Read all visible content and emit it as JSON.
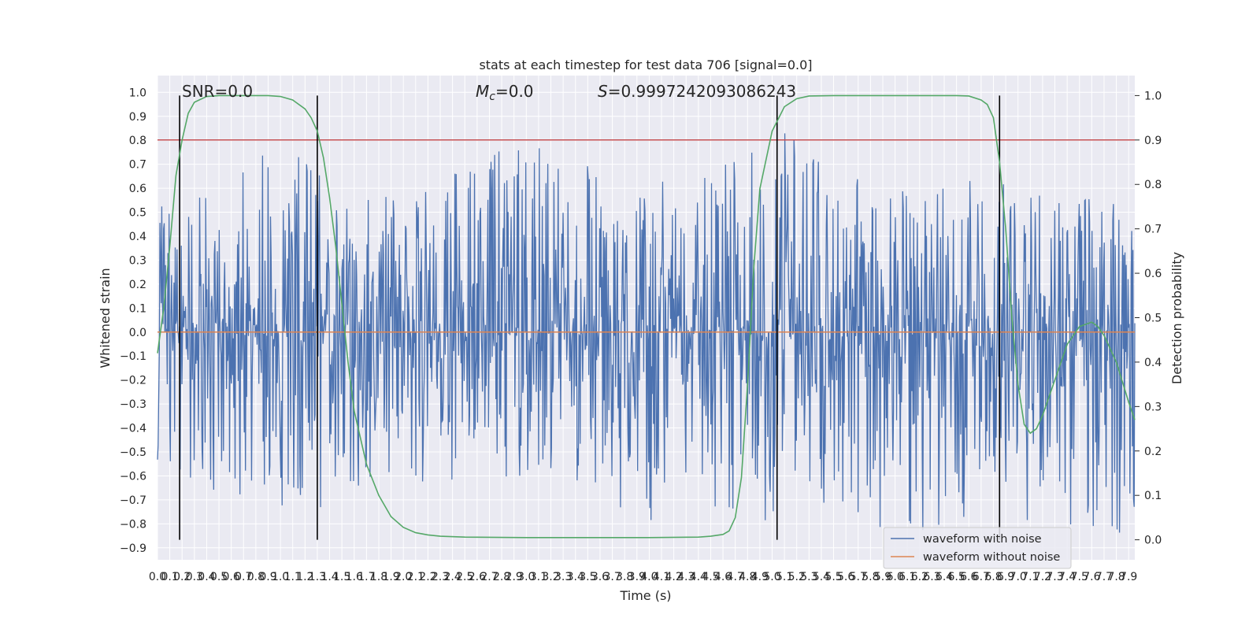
{
  "chart_data": {
    "type": "line",
    "title": "stats at each timestep for test data 706 [signal=0.0]",
    "xlabel": "Time (s)",
    "ylabel": "Whitened strain",
    "y2label": "Detection probability",
    "xlim": [
      0.0,
      7.95
    ],
    "ylim": [
      -0.95,
      1.07
    ],
    "y2lim": [
      -0.045,
      1.045
    ],
    "x_ticks": [
      0.0,
      0.1,
      0.2,
      0.3,
      0.4,
      0.5,
      0.6,
      0.7,
      0.8,
      0.9,
      1.0,
      1.1,
      1.2,
      1.3,
      1.4,
      1.5,
      1.6,
      1.7,
      1.8,
      1.9,
      2.0,
      2.1,
      2.2,
      2.3,
      2.4,
      2.5,
      2.6,
      2.7,
      2.8,
      2.9,
      3.0,
      3.1,
      3.2,
      3.3,
      3.4,
      3.5,
      3.6,
      3.7,
      3.8,
      3.9,
      4.0,
      4.1,
      4.2,
      4.3,
      4.4,
      4.5,
      4.6,
      4.7,
      4.8,
      4.9,
      5.0,
      5.1,
      5.2,
      5.3,
      5.4,
      5.5,
      5.6,
      5.7,
      5.8,
      5.9,
      6.0,
      6.1,
      6.2,
      6.3,
      6.4,
      6.5,
      6.6,
      6.7,
      6.8,
      6.9,
      7.0,
      7.1,
      7.2,
      7.3,
      7.4,
      7.5,
      7.6,
      7.7,
      7.8,
      7.9
    ],
    "x_tick_labels": [
      "0.0",
      "0.1",
      "0.2",
      "0.3",
      "0.4",
      "0.5",
      "0.6",
      "0.7",
      "0.8",
      "0.9",
      "1.0",
      "1.1",
      "1.2",
      "1.3",
      "1.4",
      "1.5",
      "1.6",
      "1.7",
      "1.8",
      "1.9",
      "2.0",
      "2.1",
      "2.2",
      "2.3",
      "2.4",
      "2.5",
      "2.6",
      "2.7",
      "2.8",
      "2.9",
      "3.0",
      "3.1",
      "3.2",
      "3.3",
      "3.4",
      "3.5",
      "3.6",
      "3.7",
      "3.8",
      "3.9",
      "4.0",
      "4.1",
      "4.2",
      "4.3",
      "4.4",
      "4.5",
      "4.6",
      "4.7",
      "4.8",
      "4.9",
      "5.0",
      "5.1",
      "5.2",
      "5.3",
      "5.4",
      "5.5",
      "5.6",
      "5.7",
      "5.8",
      "5.9",
      "6.0",
      "6.1",
      "6.2",
      "6.3",
      "6.4",
      "6.5",
      "6.6",
      "6.7",
      "6.8",
      "6.9",
      "7.0",
      "7.1",
      "7.2",
      "7.3",
      "7.4",
      "7.5",
      "7.6",
      "7.7",
      "7.8",
      "7.9"
    ],
    "y_ticks": [
      1.0,
      0.9,
      0.8,
      0.7,
      0.6,
      0.5,
      0.4,
      0.3,
      0.2,
      0.1,
      0.0,
      -0.1,
      -0.2,
      -0.3,
      -0.4,
      -0.5,
      -0.6,
      -0.7,
      -0.8,
      -0.9
    ],
    "y_tick_labels": [
      "1.0",
      "0.9",
      "0.8",
      "0.7",
      "0.6",
      "0.5",
      "0.4",
      "0.3",
      "0.2",
      "0.1",
      "0.0",
      "−0.1",
      "−0.2",
      "−0.3",
      "−0.4",
      "−0.5",
      "−0.6",
      "−0.7",
      "−0.8",
      "−0.9"
    ],
    "y2_ticks": [
      1.0,
      0.9,
      0.8,
      0.7,
      0.6,
      0.5,
      0.4,
      0.3,
      0.2,
      0.1,
      0.0
    ],
    "y2_tick_labels": [
      "1.0",
      "0.9",
      "0.8",
      "0.7",
      "0.6",
      "0.5",
      "0.4",
      "0.3",
      "0.2",
      "0.1",
      "0.0"
    ],
    "grid": true,
    "legend_position": "lower-right",
    "annotations": {
      "snr": "SNR=0.0",
      "mc_symbol": "M",
      "mc_sub": "c",
      "mc_value": "=0.0",
      "s_symbol": "S",
      "s_value": "=0.9997242093086243"
    },
    "series": [
      {
        "name": "waveform with noise",
        "color": "#4c72b0",
        "axis": "left",
        "envelope_x": [
          0.0,
          0.5,
          1.0,
          1.5,
          2.0,
          2.5,
          3.0,
          3.5,
          4.0,
          4.5,
          5.0,
          5.5,
          6.0,
          6.5,
          7.0,
          7.5,
          7.95
        ],
        "envelope_max": [
          0.55,
          0.6,
          0.8,
          0.58,
          0.6,
          0.7,
          0.8,
          0.7,
          0.62,
          0.66,
          0.9,
          0.66,
          0.62,
          0.63,
          0.68,
          0.58,
          0.52
        ],
        "envelope_min": [
          -0.68,
          -0.7,
          -0.75,
          -0.72,
          -0.62,
          -0.66,
          -0.6,
          -0.68,
          -0.82,
          -0.74,
          -0.83,
          -0.72,
          -0.86,
          -0.8,
          -0.8,
          -0.82,
          -0.86
        ]
      },
      {
        "name": "waveform without noise",
        "color": "#dd8452",
        "axis": "left",
        "x": [
          0.0,
          7.95
        ],
        "y": [
          0.0,
          0.0
        ]
      },
      {
        "name": "",
        "color": "#55a868",
        "axis": "right",
        "x": [
          0.0,
          0.05,
          0.1,
          0.15,
          0.2,
          0.25,
          0.3,
          0.4,
          0.5,
          0.6,
          0.7,
          0.8,
          0.9,
          1.0,
          1.1,
          1.2,
          1.25,
          1.3,
          1.35,
          1.4,
          1.45,
          1.5,
          1.55,
          1.6,
          1.7,
          1.8,
          1.9,
          2.0,
          2.1,
          2.2,
          2.3,
          2.5,
          3.0,
          3.5,
          4.0,
          4.4,
          4.5,
          4.6,
          4.65,
          4.7,
          4.75,
          4.8,
          4.85,
          4.9,
          5.0,
          5.1,
          5.2,
          5.3,
          5.5,
          6.0,
          6.5,
          6.6,
          6.7,
          6.75,
          6.8,
          6.85,
          6.9,
          6.95,
          7.0,
          7.05,
          7.1,
          7.15,
          7.2,
          7.3,
          7.4,
          7.5,
          7.6,
          7.65,
          7.7,
          7.8,
          7.9,
          7.95
        ],
        "y": [
          0.42,
          0.52,
          0.66,
          0.82,
          0.9,
          0.96,
          0.985,
          0.998,
          1.0,
          1.0,
          1.0,
          1.0,
          1.0,
          0.998,
          0.99,
          0.97,
          0.95,
          0.92,
          0.86,
          0.77,
          0.66,
          0.53,
          0.4,
          0.29,
          0.17,
          0.1,
          0.052,
          0.028,
          0.016,
          0.011,
          0.008,
          0.006,
          0.005,
          0.005,
          0.005,
          0.006,
          0.008,
          0.012,
          0.02,
          0.05,
          0.14,
          0.35,
          0.61,
          0.79,
          0.92,
          0.975,
          0.993,
          0.999,
          1.0,
          1.0,
          1.0,
          0.999,
          0.99,
          0.98,
          0.95,
          0.85,
          0.7,
          0.5,
          0.35,
          0.26,
          0.24,
          0.25,
          0.28,
          0.36,
          0.44,
          0.48,
          0.49,
          0.48,
          0.46,
          0.4,
          0.31,
          0.27
        ]
      },
      {
        "name": "",
        "color": "#c44e52",
        "axis": "right",
        "x": [
          0.0,
          7.95
        ],
        "y": [
          0.9,
          0.9
        ]
      }
    ],
    "vertical_markers": {
      "color": "#000000",
      "axis": "right",
      "x": [
        0.18,
        1.3,
        5.04,
        6.85
      ],
      "y_range": [
        0.0,
        1.0
      ]
    }
  }
}
